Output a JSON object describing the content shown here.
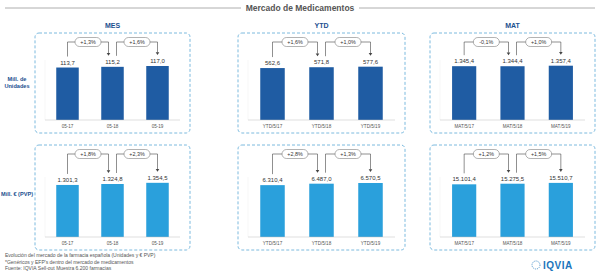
{
  "header": {
    "title": "Mercado de Medicamentos"
  },
  "columns": [
    "MES",
    "YTD",
    "MAT"
  ],
  "rows": [
    "Mill. de Unidades",
    "Mill. € (PVP)"
  ],
  "chart_data": [
    {
      "type": "bar",
      "categories": [
        "05-17",
        "05-18",
        "05-19"
      ],
      "values": [
        113.7,
        115.2,
        117.0
      ],
      "value_labels": [
        "113,7",
        "115,2",
        "117,0"
      ],
      "annotations": [
        "+1,3%",
        "+1,6%"
      ],
      "color": "#1f5ca3",
      "ylim": [
        0,
        130
      ],
      "data_labels": true,
      "tick_labels": "x"
    },
    {
      "type": "bar",
      "categories": [
        "YTD/5/17",
        "YTD/5/18",
        "YTD/5/19"
      ],
      "values": [
        562.6,
        571.8,
        577.6
      ],
      "value_labels": [
        "562,6",
        "571,8",
        "577,6"
      ],
      "annotations": [
        "+1,6%",
        "+1,0%"
      ],
      "color": "#1f5ca3",
      "ylim": [
        0,
        650
      ],
      "data_labels": true,
      "tick_labels": "x"
    },
    {
      "type": "bar",
      "categories": [
        "MAT/5/17",
        "MAT/5/18",
        "MAT/5/19"
      ],
      "values": [
        1345.4,
        1344.4,
        1357.4
      ],
      "value_labels": [
        "1.345,4",
        "1.344,4",
        "1.357,4"
      ],
      "annotations": [
        "-0,1%",
        "+1,0%"
      ],
      "color": "#1f5ca3",
      "ylim": [
        0,
        1500
      ],
      "data_labels": true,
      "tick_labels": "x"
    },
    {
      "type": "bar",
      "categories": [
        "05-17",
        "05-18",
        "05-19"
      ],
      "values": [
        1301.3,
        1324.8,
        1354.5
      ],
      "value_labels": [
        "1.301,3",
        "1.324,8",
        "1.354,5"
      ],
      "annotations": [
        "+1,8%",
        "+2,3%"
      ],
      "color": "#2aa0dc",
      "ylim": [
        0,
        1500
      ],
      "data_labels": true,
      "tick_labels": "x"
    },
    {
      "type": "bar",
      "categories": [
        "YTD/5/17",
        "YTD/5/18",
        "YTD/5/19"
      ],
      "values": [
        6310.4,
        6487.0,
        6570.5
      ],
      "value_labels": [
        "6.310,4",
        "6.487,0",
        "6.570,5"
      ],
      "annotations": [
        "+2,8%",
        "+1,3%"
      ],
      "color": "#2aa0dc",
      "ylim": [
        0,
        7300
      ],
      "data_labels": true,
      "tick_labels": "x"
    },
    {
      "type": "bar",
      "categories": [
        "MAT/5/17",
        "MAT/5/18",
        "MAT/5/19"
      ],
      "values": [
        15101.4,
        15275.5,
        15510.7
      ],
      "value_labels": [
        "15.101,4",
        "15.275,5",
        "15.510,7"
      ],
      "annotations": [
        "+1,2%",
        "+1,5%"
      ],
      "color": "#2aa0dc",
      "ylim": [
        0,
        17200
      ],
      "data_labels": true,
      "tick_labels": "x"
    }
  ],
  "footer": [
    "Evolución del mercado de la farmacia española (Unidades y € PVP)",
    "*Genéricos y EFP's dentro del mercado de medicamentos",
    "Fuente: IQVIA Sell-out Muestra 6.200 farmacias"
  ],
  "logo": "IQVIA"
}
